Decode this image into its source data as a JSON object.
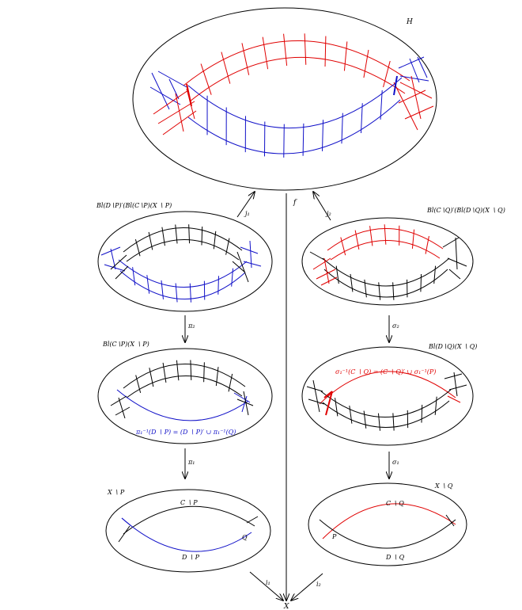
{
  "colors": {
    "black": "#000000",
    "red": "#e00000",
    "blue": "#1010c8"
  },
  "labels": {
    "H": "H",
    "f": "f",
    "X": "X",
    "j1": "j₁",
    "j2": "j₂",
    "pi1": "π₁",
    "pi2": "π₂",
    "sigma1": "σ₁",
    "sigma2": "σ₂",
    "i1": "i₁",
    "i2": "i₂",
    "bl_left_top": "Bl(D∖P)′(Bl(C∖P)(X ∖ P)",
    "bl_right_top": "Bl(C∖Q)′(Bl(D∖Q)(X ∖ Q)",
    "bl_left_mid": "Bl(C∖P)(X ∖ P)",
    "bl_right_mid": "Bl(D∖Q)(X ∖ Q)",
    "eq_left": "π₁⁻¹(D ∖ P) = (D ∖ P)′ ∪ π₁⁻¹(Q)",
    "eq_right": "σ₁⁻¹(C ∖ Q) = (C ∖ Q)′ ∪ σ₁⁻¹(P)",
    "XP": "X ∖ P",
    "XQ": "X ∖ Q",
    "CP": "C ∖ P",
    "DP": "D ∖ P",
    "CQ": "C ∖ Q",
    "DQ": "D ∖ Q",
    "P": "P",
    "Q": "Q"
  }
}
